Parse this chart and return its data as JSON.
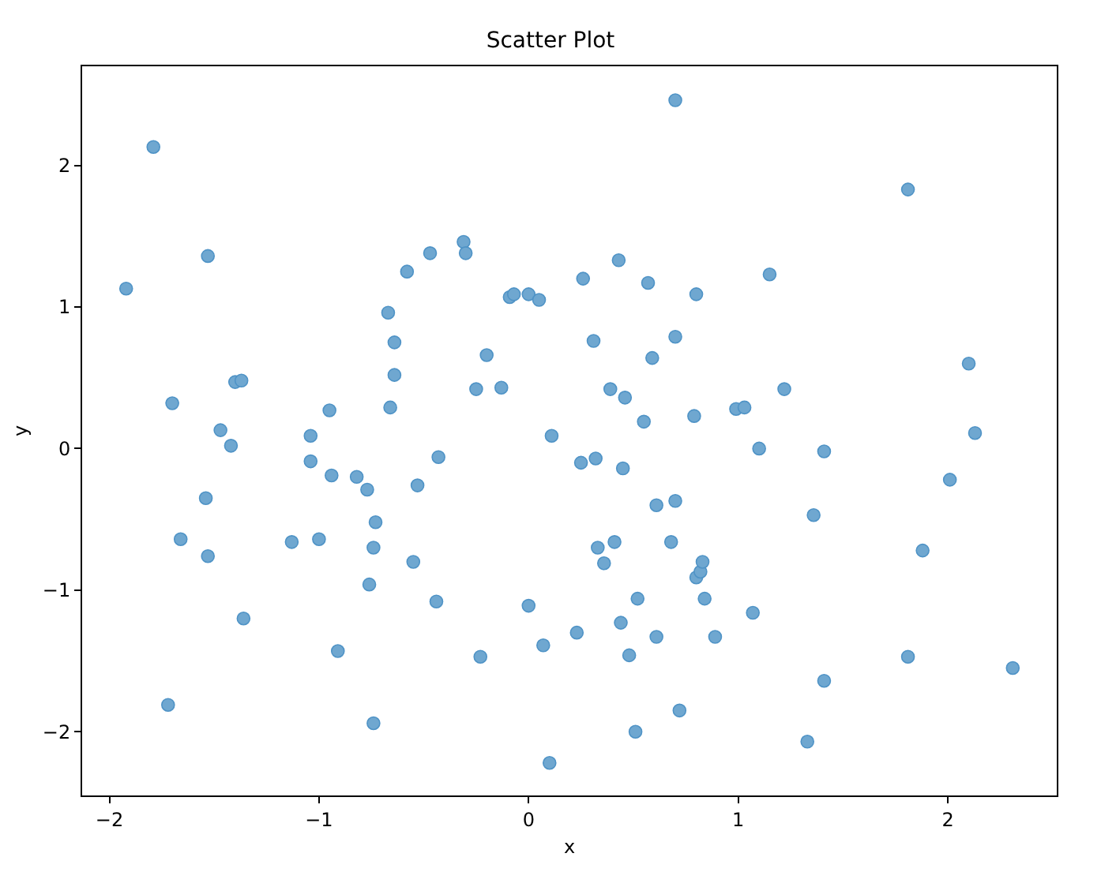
{
  "chart_data": {
    "type": "scatter",
    "title": "Scatter Plot",
    "xlabel": "x",
    "ylabel": "y",
    "xlim": [
      -2.13,
      2.52
    ],
    "ylim": [
      -2.45,
      2.7
    ],
    "xticks": [
      -2,
      -1,
      0,
      1,
      2
    ],
    "yticks": [
      -2,
      -1,
      0,
      1,
      2
    ],
    "marker": "circle",
    "series": [
      {
        "color": "#6fa7d0",
        "x": [
          -1.92,
          -1.79,
          -1.7,
          -1.72,
          -1.66,
          -1.53,
          -1.54,
          -1.53,
          -1.47,
          -1.42,
          -1.4,
          -1.37,
          -1.36,
          -1.13,
          -1.04,
          -1.04,
          -1.0,
          -0.95,
          -0.94,
          -0.91,
          -0.82,
          -0.77,
          -0.76,
          -0.74,
          -0.74,
          -0.73,
          -0.67,
          -0.64,
          -0.64,
          -0.66,
          -0.58,
          -0.55,
          -0.53,
          -0.47,
          -0.44,
          -0.43,
          -0.31,
          -0.3,
          -0.25,
          -0.23,
          -0.2,
          -0.13,
          -0.09,
          -0.07,
          0.0,
          0.0,
          0.05,
          0.07,
          0.11,
          0.1,
          0.23,
          0.26,
          0.25,
          0.31,
          0.32,
          0.33,
          0.36,
          0.39,
          0.41,
          0.43,
          0.44,
          0.45,
          0.46,
          0.48,
          0.51,
          0.52,
          0.55,
          0.57,
          0.59,
          0.61,
          0.61,
          0.68,
          0.7,
          0.7,
          0.7,
          0.72,
          0.79,
          0.8,
          0.8,
          0.82,
          0.83,
          0.84,
          0.89,
          0.99,
          1.03,
          1.07,
          1.1,
          1.15,
          1.22,
          1.33,
          1.36,
          1.41,
          1.41,
          1.81,
          1.81,
          1.88,
          2.01,
          2.1,
          2.13,
          2.31
        ],
        "values": [
          1.13,
          2.13,
          0.32,
          -1.81,
          -0.64,
          -0.76,
          -0.35,
          1.36,
          0.13,
          0.02,
          0.47,
          0.48,
          -1.2,
          -0.66,
          0.09,
          -0.09,
          -0.64,
          0.27,
          -0.19,
          -1.43,
          -0.2,
          -0.29,
          -0.96,
          -1.94,
          -0.7,
          -0.52,
          0.96,
          0.75,
          0.52,
          0.29,
          1.25,
          -0.8,
          -0.26,
          1.38,
          -1.08,
          -0.06,
          1.46,
          1.38,
          0.42,
          -1.47,
          0.66,
          0.43,
          1.07,
          1.09,
          1.09,
          -1.11,
          1.05,
          -1.39,
          0.09,
          -2.22,
          -1.3,
          1.2,
          -0.1,
          0.76,
          -0.07,
          -0.7,
          -0.81,
          0.42,
          -0.66,
          1.33,
          -1.23,
          -0.14,
          0.36,
          -1.46,
          -2.0,
          -1.06,
          0.19,
          1.17,
          0.64,
          -1.33,
          -0.4,
          -0.66,
          0.79,
          -0.37,
          2.46,
          -1.85,
          0.23,
          1.09,
          -0.91,
          -0.87,
          -0.8,
          -1.06,
          -1.33,
          0.28,
          0.29,
          -1.16,
          0.0,
          1.23,
          0.42,
          -2.07,
          -0.47,
          -0.02,
          -1.64,
          -1.47,
          1.83,
          -0.72,
          -0.22,
          0.6,
          0.11,
          -1.55
        ]
      }
    ]
  }
}
